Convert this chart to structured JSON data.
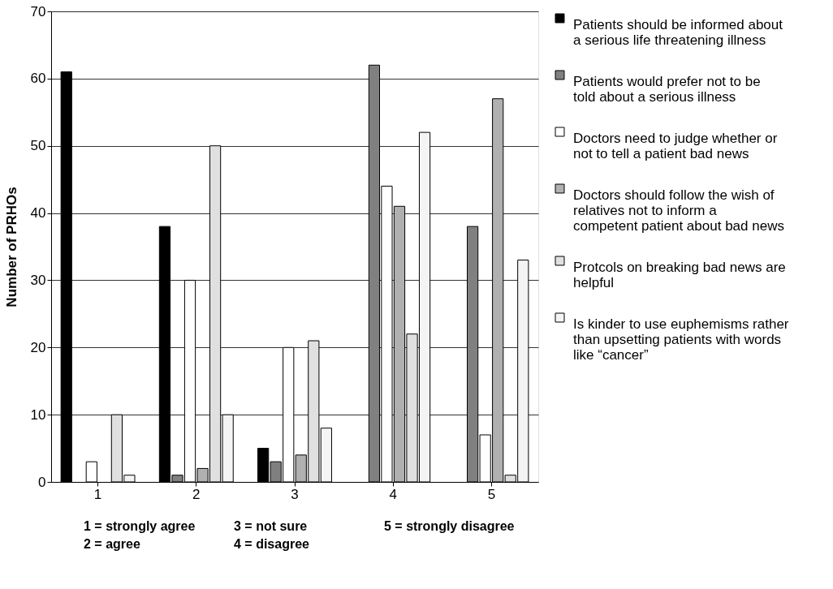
{
  "chart_data": {
    "type": "bar",
    "ylabel": "Number of PRHOs",
    "categories": [
      "1",
      "2",
      "3",
      "4",
      "5"
    ],
    "series": [
      {
        "name": "Patients should be informed about a serious life threatening illness",
        "color": "#000000",
        "values": [
          61,
          38,
          5,
          null,
          null
        ]
      },
      {
        "name": "Patients would prefer not to be told about a serious illness",
        "color": "#808080",
        "values": [
          null,
          1,
          3,
          62,
          38
        ]
      },
      {
        "name": "Doctors need to judge whether or not to tell a patient bad news",
        "color": "#ffffff",
        "values": [
          3,
          30,
          20,
          44,
          7
        ]
      },
      {
        "name": "Doctors should follow the wish of relatives not to inform a competent patient about bad news",
        "color": "#b0b0b0",
        "values": [
          null,
          2,
          4,
          41,
          57
        ]
      },
      {
        "name": "Protcols on breaking bad news are helpful",
        "color": "#e0e0e0",
        "values": [
          10,
          50,
          21,
          22,
          1
        ]
      },
      {
        "name": "Is kinder to use euphemisms rather than upsetting patients with words like “cancer”",
        "color": "#f4f4f4",
        "values": [
          1,
          10,
          8,
          52,
          33
        ]
      }
    ],
    "ylim": [
      0,
      70
    ],
    "yticks": [
      0,
      10,
      20,
      30,
      40,
      50,
      60,
      70
    ],
    "grid": "y",
    "legend": "right",
    "annotations": [
      "1 = strongly agree",
      "3 = not sure",
      "5 = strongly disagree",
      "2 = agree",
      "4 = disagree"
    ]
  }
}
